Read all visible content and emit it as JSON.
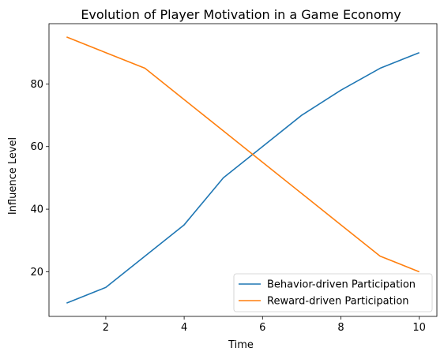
{
  "chart_data": {
    "type": "line",
    "title": "Evolution of Player Motivation in a Game Economy",
    "xlabel": "Time",
    "ylabel": "Influence Level",
    "x": [
      1,
      2,
      3,
      4,
      5,
      6,
      7,
      8,
      9,
      10
    ],
    "xlim": [
      0.55,
      10.45
    ],
    "ylim": [
      5.75,
      99.25
    ],
    "xticks": [
      2,
      4,
      6,
      8,
      10
    ],
    "yticks": [
      20,
      40,
      60,
      80
    ],
    "grid": false,
    "legend_position": "lower right",
    "series": [
      {
        "name": "Behavior-driven Participation",
        "color": "#1f77b4",
        "values": [
          10,
          15,
          25,
          35,
          50,
          60,
          70,
          78,
          85,
          90
        ]
      },
      {
        "name": "Reward-driven Participation",
        "color": "#ff7f0e",
        "values": [
          95,
          90,
          85,
          75,
          65,
          55,
          45,
          35,
          25,
          20
        ]
      }
    ]
  }
}
